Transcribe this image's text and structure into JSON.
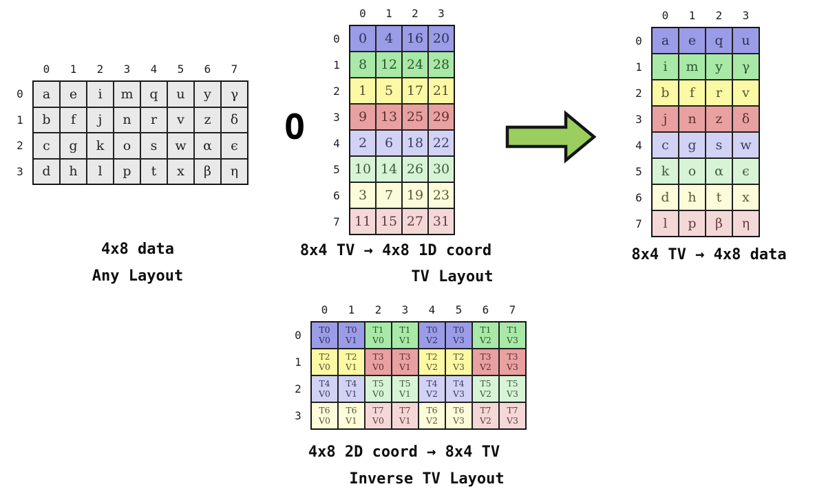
{
  "palette": {
    "blue": {
      "bg": "#9b9ce7",
      "fg": "#2e3158"
    },
    "green": {
      "bg": "#a8e9a8",
      "fg": "#2d5430"
    },
    "yellow": {
      "bg": "#fbf9a4",
      "fg": "#565330"
    },
    "red": {
      "bg": "#e9a0a0",
      "fg": "#5d2f2f"
    },
    "lblue": {
      "bg": "#d2d2f5",
      "fg": "#3a3d63"
    },
    "lgreen": {
      "bg": "#d7f4d7",
      "fg": "#3a5c3c"
    },
    "lyellow": {
      "bg": "#fcfcda",
      "fg": "#5c5836"
    },
    "lpink": {
      "bg": "#f4d8d8",
      "fg": "#653b3b"
    },
    "gray": {
      "bg": "#e9e9e9",
      "fg": "#222222"
    }
  },
  "grids": {
    "data_any": {
      "col_headers": [
        "0",
        "1",
        "2",
        "3",
        "4",
        "5",
        "6",
        "7"
      ],
      "row_headers": [
        "0",
        "1",
        "2",
        "3"
      ],
      "color": "gray",
      "cells": [
        [
          "a",
          "e",
          "i",
          "m",
          "q",
          "u",
          "y",
          "γ"
        ],
        [
          "b",
          "f",
          "j",
          "n",
          "r",
          "v",
          "z",
          "δ"
        ],
        [
          "c",
          "g",
          "k",
          "o",
          "s",
          "w",
          "α",
          "ϵ"
        ],
        [
          "d",
          "h",
          "l",
          "p",
          "t",
          "x",
          "β",
          "η"
        ]
      ]
    },
    "tv_layout": {
      "col_headers": [
        "0",
        "1",
        "2",
        "3"
      ],
      "row_headers": [
        "0",
        "1",
        "2",
        "3",
        "4",
        "5",
        "6",
        "7"
      ],
      "row_colors": [
        "blue",
        "green",
        "yellow",
        "red",
        "lblue",
        "lgreen",
        "lyellow",
        "lpink"
      ],
      "cells": [
        [
          "0",
          "4",
          "16",
          "20"
        ],
        [
          "8",
          "12",
          "24",
          "28"
        ],
        [
          "1",
          "5",
          "17",
          "21"
        ],
        [
          "9",
          "13",
          "25",
          "29"
        ],
        [
          "2",
          "6",
          "18",
          "22"
        ],
        [
          "10",
          "14",
          "26",
          "30"
        ],
        [
          "3",
          "7",
          "19",
          "23"
        ],
        [
          "11",
          "15",
          "27",
          "31"
        ]
      ]
    },
    "tv_data": {
      "col_headers": [
        "0",
        "1",
        "2",
        "3"
      ],
      "row_headers": [
        "0",
        "1",
        "2",
        "3",
        "4",
        "5",
        "6",
        "7"
      ],
      "row_colors": [
        "blue",
        "green",
        "yellow",
        "red",
        "lblue",
        "lgreen",
        "lyellow",
        "lpink"
      ],
      "cells": [
        [
          "a",
          "e",
          "q",
          "u"
        ],
        [
          "i",
          "m",
          "y",
          "γ"
        ],
        [
          "b",
          "f",
          "r",
          "v"
        ],
        [
          "j",
          "n",
          "z",
          "δ"
        ],
        [
          "c",
          "g",
          "s",
          "w"
        ],
        [
          "k",
          "o",
          "α",
          "ϵ"
        ],
        [
          "d",
          "h",
          "t",
          "x"
        ],
        [
          "l",
          "p",
          "β",
          "η"
        ]
      ]
    },
    "inverse_tv": {
      "col_headers": [
        "0",
        "1",
        "2",
        "3",
        "4",
        "5",
        "6",
        "7"
      ],
      "row_headers": [
        "0",
        "1",
        "2",
        "3"
      ],
      "cell_colors": [
        [
          "blue",
          "blue",
          "green",
          "green",
          "blue",
          "blue",
          "green",
          "green"
        ],
        [
          "yellow",
          "yellow",
          "red",
          "red",
          "yellow",
          "yellow",
          "red",
          "red"
        ],
        [
          "lblue",
          "lblue",
          "lgreen",
          "lgreen",
          "lblue",
          "lblue",
          "lgreen",
          "lgreen"
        ],
        [
          "lyellow",
          "lyellow",
          "lpink",
          "lpink",
          "lyellow",
          "lyellow",
          "lpink",
          "lpink"
        ]
      ],
      "cells": [
        [
          "T0\nV0",
          "T0\nV1",
          "T1\nV0",
          "T1\nV1",
          "T0\nV2",
          "T0\nV3",
          "T1\nV2",
          "T1\nV3"
        ],
        [
          "T2\nV0",
          "T2\nV1",
          "T3\nV0",
          "T3\nV1",
          "T2\nV2",
          "T2\nV3",
          "T3\nV2",
          "T3\nV3"
        ],
        [
          "T4\nV0",
          "T4\nV1",
          "T5\nV0",
          "T5\nV1",
          "T4\nV2",
          "T4\nV3",
          "T5\nV2",
          "T5\nV3"
        ],
        [
          "T6\nV0",
          "T6\nV1",
          "T7\nV0",
          "T7\nV1",
          "T6\nV2",
          "T6\nV3",
          "T7\nV2",
          "T7\nV3"
        ]
      ]
    }
  },
  "captions": {
    "left": {
      "line1": "4x8 data",
      "line2": "Any Layout"
    },
    "middle": {
      "line1": "8x4 TV →  4x8 1D coord",
      "line2": "TV Layout"
    },
    "right": {
      "line1": "8x4 TV →  4x8 data"
    },
    "bottom": {
      "line1": "4x8 2D coord → 8x4 TV",
      "line2": "Inverse TV Layout"
    }
  },
  "operators": {
    "compose": "O"
  },
  "arrow": {
    "color": "#9bce5e",
    "outline": "#151515"
  }
}
